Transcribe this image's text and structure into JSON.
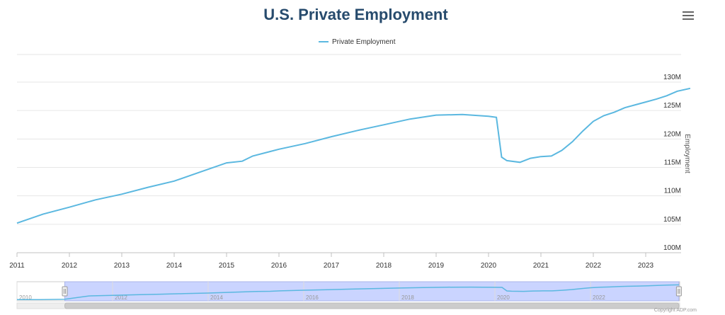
{
  "chart_data": {
    "type": "line",
    "title": "U.S. Private Employment",
    "ylabel": "Employment",
    "ylim": [
      100,
      130
    ],
    "y_ticks": [
      "100M",
      "105M",
      "110M",
      "115M",
      "120M",
      "125M",
      "130M"
    ],
    "x_ticks": [
      "2011",
      "2012",
      "2013",
      "2014",
      "2015",
      "2016",
      "2017",
      "2018",
      "2019",
      "2020",
      "2021",
      "2022",
      "2023"
    ],
    "navigator_ticks": [
      "2010",
      "2012",
      "2014",
      "2016",
      "2018",
      "2020",
      "2022"
    ],
    "legend_position": "top-center",
    "grid": true,
    "series": [
      {
        "name": "Private Employment",
        "color": "#5bb8e0",
        "points": [
          [
            2011.0,
            105.2
          ],
          [
            2011.5,
            106.8
          ],
          [
            2012.0,
            108.0
          ],
          [
            2012.5,
            109.3
          ],
          [
            2013.0,
            110.3
          ],
          [
            2013.5,
            111.5
          ],
          [
            2014.0,
            112.6
          ],
          [
            2014.5,
            114.2
          ],
          [
            2015.0,
            115.8
          ],
          [
            2015.3,
            116.1
          ],
          [
            2015.5,
            117.0
          ],
          [
            2016.0,
            118.2
          ],
          [
            2016.5,
            119.2
          ],
          [
            2017.0,
            120.4
          ],
          [
            2017.5,
            121.5
          ],
          [
            2018.0,
            122.5
          ],
          [
            2018.5,
            123.5
          ],
          [
            2019.0,
            124.2
          ],
          [
            2019.5,
            124.3
          ],
          [
            2020.0,
            124.0
          ],
          [
            2020.15,
            123.8
          ],
          [
            2020.25,
            116.8
          ],
          [
            2020.35,
            116.2
          ],
          [
            2020.6,
            115.9
          ],
          [
            2020.8,
            116.6
          ],
          [
            2021.0,
            116.9
          ],
          [
            2021.2,
            117.0
          ],
          [
            2021.4,
            118.0
          ],
          [
            2021.6,
            119.5
          ],
          [
            2021.8,
            121.4
          ],
          [
            2022.0,
            123.1
          ],
          [
            2022.2,
            124.1
          ],
          [
            2022.4,
            124.7
          ],
          [
            2022.6,
            125.5
          ],
          [
            2022.8,
            126.0
          ],
          [
            2023.0,
            126.5
          ],
          [
            2023.2,
            127.0
          ],
          [
            2023.4,
            127.6
          ],
          [
            2023.6,
            128.4
          ],
          [
            2023.85,
            128.9
          ]
        ]
      }
    ],
    "navigator": {
      "range_start": 2011.0,
      "range_end": 2023.85,
      "data_start": 2010.0
    }
  },
  "ui": {
    "menu_icon": "hamburger-icon",
    "credit": "Copyright ADP.com"
  }
}
